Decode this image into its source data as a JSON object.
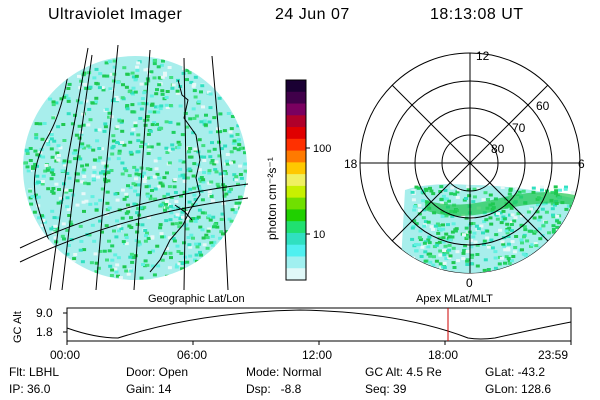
{
  "header": {
    "instrument": "Ultraviolet Imager",
    "date": "24 Jun 07",
    "time": "18:13:08 UT"
  },
  "colorbar": {
    "unit_label": "photon cm⁻²s⁻¹",
    "ticks": [
      "100",
      "10"
    ],
    "colors": [
      "#1a0033",
      "#40004a",
      "#7a0060",
      "#b0002a",
      "#e00000",
      "#ff3000",
      "#ff7a00",
      "#ffc800",
      "#f0f060",
      "#c8f000",
      "#70e000",
      "#20d000",
      "#20e070",
      "#30e0c0",
      "#50f0f0",
      "#a0f0f0",
      "#e0f8f8"
    ]
  },
  "polar": {
    "mlt_labels": {
      "top": "12",
      "left": "18",
      "right": "6",
      "bottom": "0"
    },
    "lat_labels": [
      "60",
      "70",
      "80"
    ]
  },
  "captions": {
    "left": "Geographic Lat/Lon",
    "right": "Apex MLat/MLT"
  },
  "altitude_plot": {
    "ylabel": "GC Alt",
    "yticks": [
      "9.0",
      "1.8"
    ],
    "xticks": [
      "00:00",
      "06:00",
      "12:00",
      "18:00",
      "23:59"
    ],
    "current_time_marker": "18:13"
  },
  "info": {
    "flt": "Flt: LBHL",
    "ip": "IP: 36.0",
    "door": "Door: Open",
    "gain": "Gain: 14",
    "mode": "Mode: Normal",
    "dsp": "Dsp:   -8.8",
    "gc_alt": "GC Alt: 4.5 Re",
    "seq": "Seq: 39",
    "glat": "GLat: -43.2",
    "glon": "GLon: 128.6"
  }
}
